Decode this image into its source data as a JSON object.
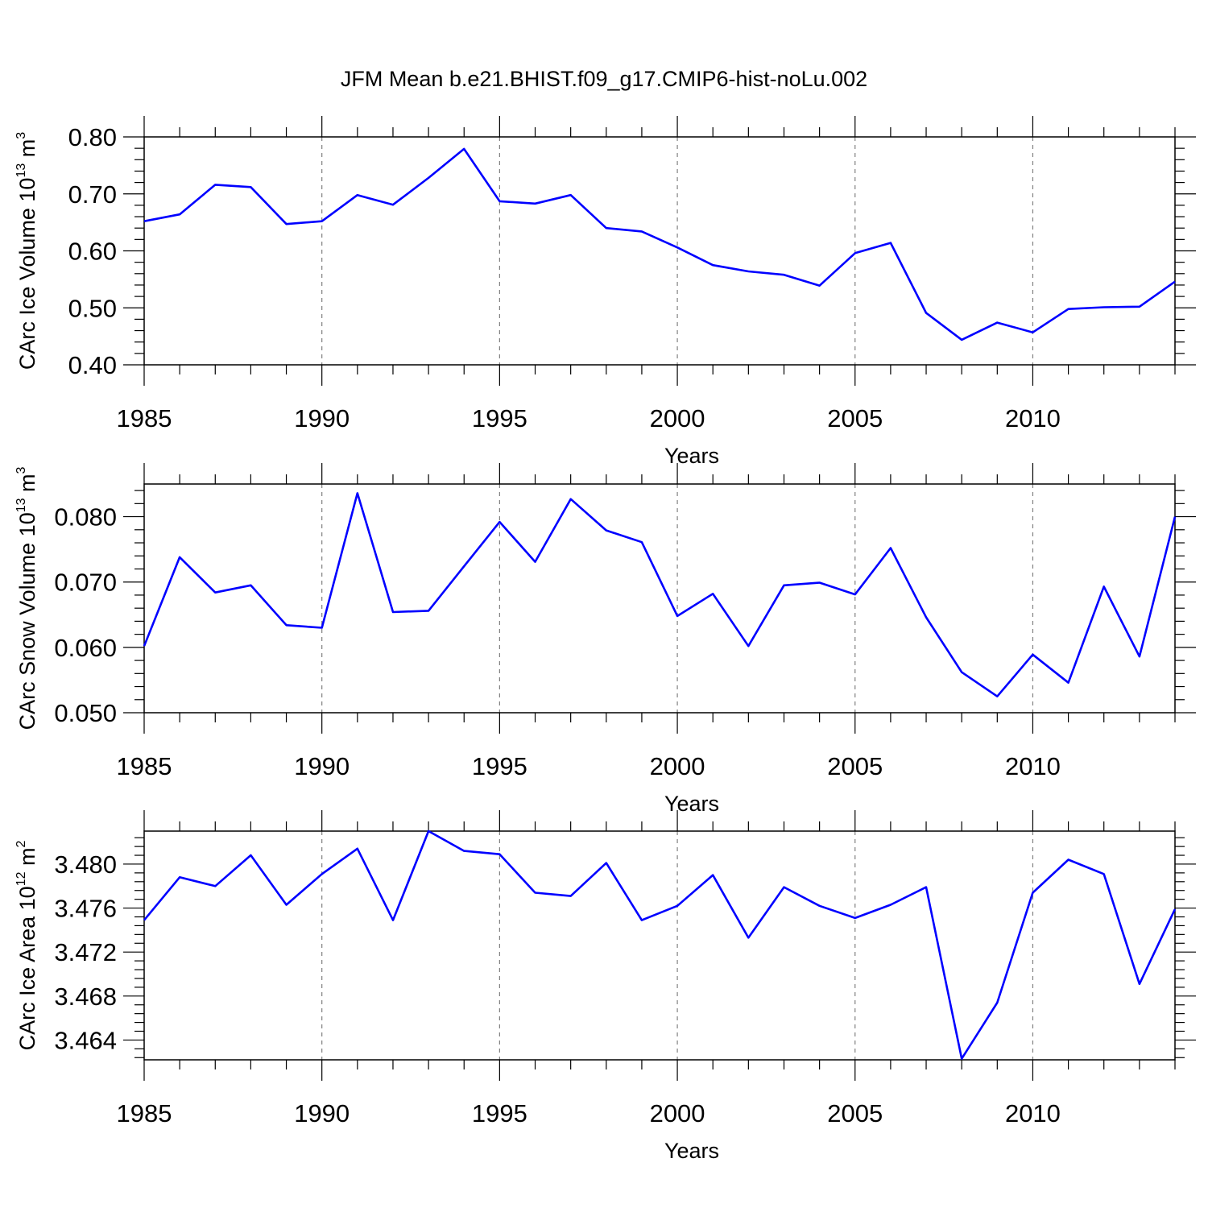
{
  "title": "JFM Mean b.e21.BHIST.f09_g17.CMIP6-hist-noLu.002",
  "colors": {
    "line": "#0000ff",
    "axis": "#000000",
    "grid": "#808080"
  },
  "chart_data": [
    {
      "type": "line",
      "ylabel_main": "CArc Ice Volume 10",
      "ylabel_sup": "13",
      "ylabel_unit": " m",
      "ylabel_unit_sup": "3",
      "xlabel": "Years",
      "xlim": [
        1985,
        2014
      ],
      "ylim": [
        0.4,
        0.8
      ],
      "yticks": [
        0.4,
        0.5,
        0.6,
        0.7,
        0.8
      ],
      "ytick_labels": [
        "0.40",
        "0.50",
        "0.60",
        "0.70",
        "0.80"
      ],
      "xticks": [
        1985,
        1990,
        1995,
        2000,
        2005,
        2010
      ],
      "xtick_labels": [
        "1985",
        "1990",
        "1995",
        "2000",
        "2005",
        "2010"
      ],
      "grid_x": true,
      "x": [
        1985,
        1986,
        1987,
        1988,
        1989,
        1990,
        1991,
        1992,
        1993,
        1994,
        1995,
        1996,
        1997,
        1998,
        1999,
        2000,
        2001,
        2002,
        2003,
        2004,
        2005,
        2006,
        2007,
        2008,
        2009,
        2010,
        2011,
        2012,
        2013,
        2014
      ],
      "values": [
        0.652,
        0.664,
        0.716,
        0.712,
        0.647,
        0.652,
        0.698,
        0.681,
        0.728,
        0.779,
        0.687,
        0.683,
        0.698,
        0.64,
        0.634,
        0.606,
        0.575,
        0.564,
        0.558,
        0.539,
        0.596,
        0.614,
        0.491,
        0.444,
        0.474,
        0.457,
        0.498,
        0.501,
        0.502,
        0.546
      ]
    },
    {
      "type": "line",
      "ylabel_main": "CArc Snow Volume 10",
      "ylabel_sup": "13",
      "ylabel_unit": " m",
      "ylabel_unit_sup": "3",
      "xlabel": "Years",
      "xlim": [
        1985,
        2014
      ],
      "ylim": [
        0.05,
        0.085
      ],
      "yticks": [
        0.05,
        0.06,
        0.07,
        0.08
      ],
      "ytick_labels": [
        "0.050",
        "0.060",
        "0.070",
        "0.080"
      ],
      "xticks": [
        1985,
        1990,
        1995,
        2000,
        2005,
        2010
      ],
      "xtick_labels": [
        "1985",
        "1990",
        "1995",
        "2000",
        "2005",
        "2010"
      ],
      "grid_x": true,
      "x": [
        1985,
        1986,
        1987,
        1988,
        1989,
        1990,
        1991,
        1992,
        1993,
        1994,
        1995,
        1996,
        1997,
        1998,
        1999,
        2000,
        2001,
        2002,
        2003,
        2004,
        2005,
        2006,
        2007,
        2008,
        2009,
        2010,
        2011,
        2012,
        2013,
        2014
      ],
      "values": [
        0.0602,
        0.0738,
        0.0684,
        0.0695,
        0.0634,
        0.063,
        0.0836,
        0.0654,
        0.0656,
        0.0724,
        0.0792,
        0.0731,
        0.0827,
        0.0779,
        0.0761,
        0.0648,
        0.0682,
        0.0602,
        0.0695,
        0.0699,
        0.0681,
        0.0752,
        0.0646,
        0.0562,
        0.0525,
        0.0589,
        0.0546,
        0.0693,
        0.0586,
        0.08
      ]
    },
    {
      "type": "line",
      "ylabel_main": "CArc Ice Area 10",
      "ylabel_sup": "12",
      "ylabel_unit": " m",
      "ylabel_unit_sup": "2",
      "xlabel": "Years",
      "xlim": [
        1985,
        2014
      ],
      "ylim": [
        3.4622,
        3.483
      ],
      "yticks": [
        3.464,
        3.468,
        3.472,
        3.476,
        3.48
      ],
      "ytick_labels": [
        "3.464",
        "3.468",
        "3.472",
        "3.476",
        "3.480"
      ],
      "xticks": [
        1985,
        1990,
        1995,
        2000,
        2005,
        2010
      ],
      "xtick_labels": [
        "1985",
        "1990",
        "1995",
        "2000",
        "2005",
        "2010"
      ],
      "grid_x": true,
      "x": [
        1985,
        1986,
        1987,
        1988,
        1989,
        1990,
        1991,
        1992,
        1993,
        1994,
        1995,
        1996,
        1997,
        1998,
        1999,
        2000,
        2001,
        2002,
        2003,
        2004,
        2005,
        2006,
        2007,
        2008,
        2009,
        2010,
        2011,
        2012,
        2013,
        2014
      ],
      "values": [
        3.4749,
        3.4788,
        3.478,
        3.4808,
        3.4763,
        3.4791,
        3.4814,
        3.4749,
        3.483,
        3.4812,
        3.4809,
        3.4774,
        3.4771,
        3.4801,
        3.4749,
        3.4762,
        3.479,
        3.4733,
        3.4779,
        3.4762,
        3.4751,
        3.4763,
        3.4779,
        3.4623,
        3.4674,
        3.4774,
        3.4804,
        3.4791,
        3.4691,
        3.4759
      ]
    }
  ]
}
